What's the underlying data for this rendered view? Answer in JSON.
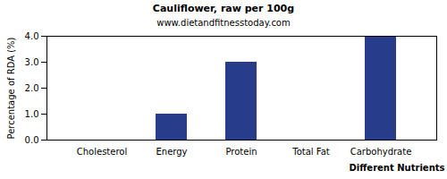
{
  "chart_data": {
    "type": "bar",
    "title": "Cauliflower, raw per 100g",
    "subtitle": "www.dietandfitnesstoday.com",
    "x_label": "Different Nutrients",
    "y_label": "Percentage of RDA (%)",
    "categories": [
      "Cholesterol",
      "Energy",
      "Protein",
      "Total Fat",
      "Carbohydrate"
    ],
    "values": [
      0,
      1,
      3,
      0,
      4
    ],
    "color": "#283c8c",
    "ylim": [
      0,
      4
    ],
    "yticks": [
      {
        "value": 0,
        "label": "0.0"
      },
      {
        "value": 1,
        "label": "1.0"
      },
      {
        "value": 2,
        "label": "2.0"
      },
      {
        "value": 3,
        "label": "3.0"
      },
      {
        "value": 4,
        "label": "4.0"
      }
    ],
    "grid": false
  }
}
